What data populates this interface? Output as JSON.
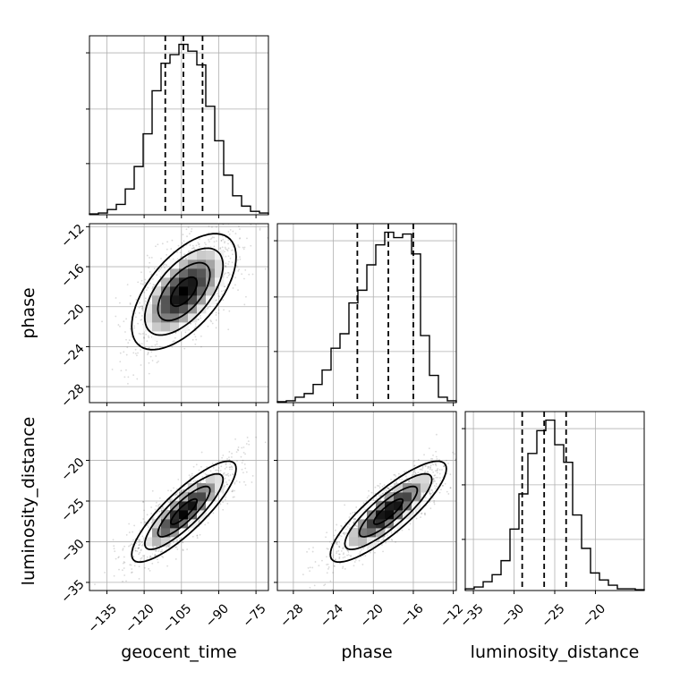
{
  "chart_data": {
    "type": "corner",
    "parameters": [
      "geocent_time",
      "phase",
      "luminosity_distance"
    ],
    "axes": {
      "geocent_time": {
        "lim": [
          -142,
          -70
        ],
        "ticks": [
          -135,
          -120,
          -105,
          -90,
          -75
        ],
        "tick_labels": [
          "−135",
          "−120",
          "−105",
          "−90",
          "−75"
        ]
      },
      "phase": {
        "lim": [
          -29.6,
          -11.7
        ],
        "ticks": [
          -28,
          -24,
          -20,
          -16,
          -12
        ],
        "tick_labels": [
          "−28",
          "−24",
          "−20",
          "−16",
          "−12"
        ]
      },
      "luminosity_distance": {
        "lim": [
          -36,
          -14
        ],
        "ticks": [
          -35,
          -30,
          -25,
          -20
        ],
        "tick_labels": [
          "−35",
          "−30",
          "−25",
          "−20"
        ]
      }
    },
    "grid": true,
    "marginals": {
      "geocent_time": {
        "bin_edges": [
          -142,
          -138.4,
          -134.8,
          -131.2,
          -127.6,
          -124,
          -120.4,
          -116.8,
          -113.2,
          -109.6,
          -106,
          -102.4,
          -98.8,
          -95.2,
          -91.6,
          -88,
          -84.4,
          -80.8,
          -77.2,
          -73.6,
          -70
        ],
        "counts": [
          0.005,
          0.01,
          0.03,
          0.06,
          0.15,
          0.28,
          0.47,
          0.72,
          0.88,
          0.93,
          0.99,
          0.95,
          0.87,
          0.63,
          0.43,
          0.23,
          0.11,
          0.05,
          0.02,
          0.01
        ],
        "quantiles": [
          -111.5,
          -104.2,
          -96.5
        ]
      },
      "phase": {
        "bin_edges": [
          -29.6,
          -28.705,
          -27.81,
          -26.915,
          -26.02,
          -25.125,
          -24.23,
          -23.335,
          -22.44,
          -21.545,
          -20.65,
          -19.755,
          -18.86,
          -17.965,
          -17.07,
          -16.175,
          -15.28,
          -14.385,
          -13.49,
          -12.595,
          -11.7
        ],
        "counts": [
          0.005,
          0.01,
          0.03,
          0.05,
          0.1,
          0.18,
          0.3,
          0.38,
          0.55,
          0.62,
          0.76,
          0.87,
          0.94,
          0.91,
          0.93,
          0.82,
          0.37,
          0.15,
          0.03,
          0.01
        ],
        "quantiles": [
          -21.6,
          -18.5,
          -16.0
        ]
      },
      "luminosity_distance": {
        "bin_edges": [
          -36,
          -34.9,
          -33.8,
          -32.7,
          -31.6,
          -30.5,
          -29.4,
          -28.3,
          -27.2,
          -26.1,
          -25,
          -23.9,
          -22.8,
          -21.7,
          -20.6,
          -19.5,
          -18.4,
          -17.3,
          -16.2,
          -15.1,
          -14
        ],
        "counts": [
          0.01,
          0.02,
          0.05,
          0.09,
          0.17,
          0.35,
          0.55,
          0.78,
          0.91,
          0.97,
          0.83,
          0.73,
          0.43,
          0.24,
          0.1,
          0.06,
          0.03,
          0.01,
          0.01,
          0.005
        ],
        "quantiles": [
          -29.0,
          -26.3,
          -23.6
        ]
      }
    },
    "joint": [
      {
        "x": "geocent_time",
        "y": "phase",
        "mean": [
          -104,
          -18.5
        ],
        "sd": [
          10.5,
          2.9
        ],
        "rho": 0.6
      },
      {
        "x": "geocent_time",
        "y": "luminosity_distance",
        "mean": [
          -104,
          -26.3
        ],
        "sd": [
          10.5,
          3.1
        ],
        "rho": 0.85
      },
      {
        "x": "phase",
        "y": "luminosity_distance",
        "mean": [
          -18.5,
          -26.3
        ],
        "sd": [
          2.9,
          3.1
        ],
        "rho": 0.85
      }
    ],
    "contour_levels": [
      0.118,
      0.393,
      0.675,
      0.865
    ]
  }
}
